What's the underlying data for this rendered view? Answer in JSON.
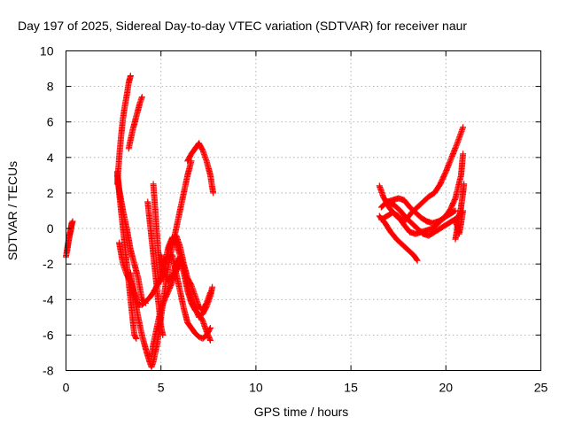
{
  "chart_data": {
    "type": "scatter",
    "title": "Day 197 of 2025, Sidereal Day-to-day VTEC variation (SDTVAR) for receiver naur",
    "xlabel": "GPS time / hours",
    "ylabel": "SDTVAR / TECUs",
    "xlim": [
      0,
      25
    ],
    "ylim": [
      -8,
      10
    ],
    "xticks": [
      "0",
      "5",
      "10",
      "15",
      "20",
      "25"
    ],
    "yticks": [
      "-8",
      "-6",
      "-4",
      "-2",
      "0",
      "2",
      "4",
      "6",
      "8",
      "10"
    ],
    "grid": true,
    "marker": "plus",
    "series_color": "#ff0000",
    "tracks": [
      {
        "points": [
          [
            0.0,
            -1.6
          ],
          [
            0.1,
            -0.9
          ],
          [
            0.2,
            -0.3
          ],
          [
            0.3,
            0.2
          ],
          [
            0.35,
            0.4
          ]
        ]
      },
      {
        "points": [
          [
            0.05,
            -1.3
          ],
          [
            0.15,
            -0.6
          ],
          [
            0.25,
            -0.1
          ],
          [
            0.3,
            0.3
          ]
        ]
      },
      {
        "points": [
          [
            2.7,
            2.5
          ],
          [
            2.8,
            4.0
          ],
          [
            2.9,
            5.2
          ],
          [
            3.0,
            6.2
          ],
          [
            3.1,
            6.9
          ],
          [
            3.2,
            7.5
          ],
          [
            3.3,
            8.2
          ],
          [
            3.4,
            8.6
          ]
        ]
      },
      {
        "points": [
          [
            2.7,
            3.2
          ],
          [
            2.8,
            2.0
          ],
          [
            2.9,
            1.0
          ],
          [
            3.0,
            0.0
          ],
          [
            3.1,
            -1.0
          ],
          [
            3.2,
            -2.0
          ],
          [
            3.3,
            -3.0
          ],
          [
            3.4,
            -4.0
          ],
          [
            3.5,
            -5.0
          ],
          [
            3.6,
            -6.0
          ],
          [
            3.7,
            -6.2
          ]
        ]
      },
      {
        "points": [
          [
            2.7,
            3.0
          ],
          [
            2.8,
            2.2
          ],
          [
            3.0,
            1.0
          ],
          [
            3.2,
            0.0
          ],
          [
            3.4,
            -1.2
          ],
          [
            3.6,
            -2.0
          ],
          [
            3.8,
            -2.8
          ],
          [
            4.0,
            -4.0
          ],
          [
            4.2,
            -4.2
          ]
        ]
      },
      {
        "points": [
          [
            3.3,
            4.5
          ],
          [
            3.5,
            5.5
          ],
          [
            3.7,
            6.3
          ],
          [
            3.9,
            7.1
          ],
          [
            4.0,
            7.4
          ]
        ]
      },
      {
        "points": [
          [
            2.8,
            -0.8
          ],
          [
            2.9,
            -1.4
          ],
          [
            3.0,
            -2.0
          ],
          [
            3.2,
            -2.6
          ],
          [
            3.4,
            -3.0
          ],
          [
            3.6,
            -3.6
          ],
          [
            3.8,
            -4.3
          ],
          [
            4.0,
            -4.3
          ],
          [
            4.2,
            -4.1
          ],
          [
            4.4,
            -3.9
          ],
          [
            4.6,
            -3.6
          ],
          [
            4.8,
            -3.2
          ],
          [
            5.0,
            -2.8
          ],
          [
            5.2,
            -2.6
          ]
        ]
      },
      {
        "points": [
          [
            3.4,
            -2.5
          ],
          [
            3.6,
            -3.8
          ],
          [
            3.8,
            -5.0
          ],
          [
            4.0,
            -6.0
          ],
          [
            4.2,
            -6.8
          ],
          [
            4.4,
            -7.5
          ],
          [
            4.5,
            -7.8
          ],
          [
            4.6,
            -7.5
          ],
          [
            4.8,
            -6.5
          ],
          [
            5.0,
            -5.0
          ],
          [
            5.2,
            -3.5
          ],
          [
            5.4,
            -2.0
          ],
          [
            5.6,
            -1.0
          ],
          [
            5.8,
            0.0
          ],
          [
            6.0,
            1.0
          ],
          [
            6.2,
            2.0
          ],
          [
            6.4,
            3.0
          ],
          [
            6.6,
            3.8
          ]
        ]
      },
      {
        "points": [
          [
            4.3,
            1.5
          ],
          [
            4.4,
            0.5
          ],
          [
            4.5,
            -0.5
          ],
          [
            4.6,
            -1.5
          ],
          [
            4.7,
            -2.5
          ],
          [
            4.8,
            -3.5
          ],
          [
            4.9,
            -4.5
          ],
          [
            5.0,
            -5.5
          ],
          [
            5.1,
            -6.0
          ]
        ]
      },
      {
        "points": [
          [
            4.6,
            2.5
          ],
          [
            4.7,
            1.0
          ],
          [
            4.8,
            -0.5
          ],
          [
            4.9,
            -2.0
          ],
          [
            5.0,
            -3.0
          ],
          [
            5.1,
            -2.5
          ],
          [
            5.2,
            -1.8
          ],
          [
            5.4,
            -1.5
          ]
        ]
      },
      {
        "points": [
          [
            4.5,
            -7.2
          ],
          [
            4.6,
            -6.5
          ],
          [
            4.8,
            -5.5
          ],
          [
            5.0,
            -4.5
          ],
          [
            5.2,
            -4.0
          ],
          [
            5.4,
            -3.5
          ],
          [
            5.6,
            -3.0
          ],
          [
            5.8,
            -2.4
          ],
          [
            6.0,
            -2.0
          ]
        ]
      },
      {
        "points": [
          [
            5.2,
            -2.0
          ],
          [
            5.4,
            -1.0
          ],
          [
            5.6,
            -0.5
          ],
          [
            5.8,
            -0.8
          ],
          [
            6.0,
            -1.5
          ],
          [
            6.2,
            -2.5
          ],
          [
            6.4,
            -3.5
          ],
          [
            6.6,
            -4.2
          ],
          [
            6.8,
            -4.6
          ],
          [
            7.0,
            -4.8
          ],
          [
            7.2,
            -5.2
          ],
          [
            7.4,
            -5.8
          ],
          [
            7.6,
            -6.3
          ]
        ]
      },
      {
        "points": [
          [
            5.0,
            -1.5
          ],
          [
            5.2,
            -2.5
          ],
          [
            5.4,
            -3.0
          ],
          [
            5.6,
            -2.6
          ],
          [
            5.8,
            -2.0
          ],
          [
            6.0,
            -1.6
          ],
          [
            6.2,
            -2.2
          ],
          [
            6.4,
            -3.2
          ],
          [
            6.6,
            -4.0
          ],
          [
            6.8,
            -4.5
          ],
          [
            7.0,
            -5.0
          ],
          [
            7.2,
            -4.8
          ],
          [
            7.4,
            -4.4
          ],
          [
            7.6,
            -3.8
          ],
          [
            7.7,
            -3.3
          ]
        ]
      },
      {
        "points": [
          [
            5.6,
            -1.5
          ],
          [
            5.8,
            -2.5
          ],
          [
            6.0,
            -3.5
          ],
          [
            6.2,
            -4.5
          ],
          [
            6.4,
            -5.3
          ],
          [
            6.6,
            -5.6
          ],
          [
            6.8,
            -5.9
          ],
          [
            7.0,
            -6.1
          ],
          [
            7.2,
            -6.2
          ],
          [
            7.4,
            -6.0
          ],
          [
            7.6,
            -5.6
          ]
        ]
      },
      {
        "points": [
          [
            5.4,
            -1.2
          ],
          [
            5.6,
            -0.6
          ],
          [
            5.8,
            -0.4
          ],
          [
            6.0,
            -1.0
          ],
          [
            6.2,
            -2.0
          ],
          [
            6.4,
            -2.8
          ],
          [
            6.6,
            -3.2
          ],
          [
            6.8,
            -3.8
          ],
          [
            7.0,
            -4.4
          ],
          [
            7.2,
            -4.6
          ],
          [
            7.4,
            -4.2
          ],
          [
            7.6,
            -3.6
          ]
        ]
      },
      {
        "points": [
          [
            6.4,
            3.8
          ],
          [
            6.6,
            4.2
          ],
          [
            6.8,
            4.5
          ],
          [
            7.0,
            4.8
          ],
          [
            7.2,
            4.4
          ],
          [
            7.4,
            3.8
          ],
          [
            7.6,
            3.0
          ],
          [
            7.7,
            2.3
          ],
          [
            7.75,
            2.0
          ]
        ]
      },
      {
        "points": [
          [
            16.5,
            2.4
          ],
          [
            16.7,
            1.8
          ],
          [
            17.0,
            1.2
          ],
          [
            17.3,
            0.8
          ],
          [
            17.6,
            0.5
          ],
          [
            17.9,
            0.5
          ],
          [
            18.2,
            0.9
          ],
          [
            18.5,
            1.2
          ],
          [
            18.8,
            1.5
          ],
          [
            19.1,
            1.8
          ],
          [
            19.4,
            2.0
          ],
          [
            19.7,
            2.5
          ],
          [
            20.0,
            3.2
          ],
          [
            20.3,
            4.0
          ],
          [
            20.6,
            4.8
          ],
          [
            20.9,
            5.7
          ]
        ]
      },
      {
        "points": [
          [
            16.6,
            1.2
          ],
          [
            16.9,
            1.5
          ],
          [
            17.2,
            1.6
          ],
          [
            17.5,
            1.7
          ],
          [
            17.8,
            1.6
          ],
          [
            18.1,
            1.2
          ],
          [
            18.4,
            0.9
          ],
          [
            18.7,
            0.6
          ],
          [
            19.0,
            0.4
          ],
          [
            19.3,
            0.3
          ],
          [
            19.6,
            0.4
          ],
          [
            19.9,
            0.6
          ],
          [
            20.2,
            1.0
          ],
          [
            20.5,
            1.7
          ],
          [
            20.8,
            3.0
          ],
          [
            20.9,
            4.2
          ]
        ]
      },
      {
        "points": [
          [
            16.5,
            0.7
          ],
          [
            16.8,
            0.3
          ],
          [
            17.1,
            -0.2
          ],
          [
            17.4,
            -0.6
          ],
          [
            17.7,
            -0.9
          ],
          [
            18.0,
            -1.2
          ],
          [
            18.3,
            -1.5
          ],
          [
            18.5,
            -1.8
          ]
        ]
      },
      {
        "points": [
          [
            16.6,
            0.5
          ],
          [
            16.9,
            0.7
          ],
          [
            17.2,
            0.9
          ],
          [
            17.5,
            0.7
          ],
          [
            17.8,
            0.2
          ],
          [
            18.1,
            -0.2
          ],
          [
            18.4,
            -0.3
          ],
          [
            18.7,
            -0.2
          ],
          [
            19.0,
            -0.1
          ],
          [
            19.3,
            0.0
          ],
          [
            19.6,
            0.3
          ],
          [
            19.9,
            0.6
          ],
          [
            20.2,
            0.8
          ],
          [
            20.5,
            1.0
          ]
        ]
      },
      {
        "points": [
          [
            17.0,
            1.5
          ],
          [
            17.3,
            1.3
          ],
          [
            17.6,
            1.0
          ],
          [
            17.9,
            0.6
          ],
          [
            18.2,
            0.3
          ],
          [
            18.5,
            0.0
          ],
          [
            18.8,
            -0.3
          ],
          [
            19.1,
            -0.4
          ],
          [
            19.4,
            -0.2
          ],
          [
            19.7,
            0.0
          ],
          [
            20.0,
            0.2
          ],
          [
            20.3,
            0.4
          ],
          [
            20.6,
            0.6
          ],
          [
            20.8,
            0.9
          ]
        ]
      },
      {
        "points": [
          [
            20.5,
            -0.6
          ],
          [
            20.6,
            0.0
          ],
          [
            20.7,
            0.6
          ],
          [
            20.8,
            1.2
          ],
          [
            20.9,
            2.0
          ],
          [
            20.95,
            2.5
          ]
        ]
      },
      {
        "points": [
          [
            20.5,
            0.5
          ],
          [
            20.6,
            0.1
          ],
          [
            20.7,
            -0.3
          ],
          [
            20.8,
            0.3
          ],
          [
            20.9,
            1.0
          ]
        ]
      }
    ]
  }
}
